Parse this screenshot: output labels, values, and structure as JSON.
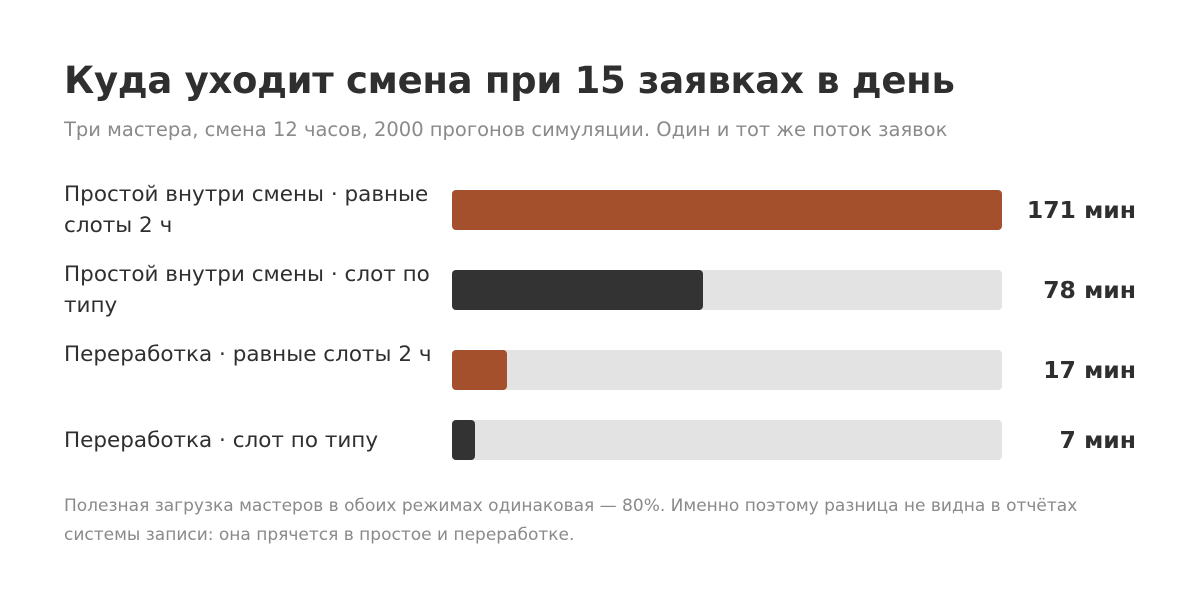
{
  "colors": {
    "accent": "#a4502c",
    "dark": "#333333",
    "track": "#e3e3e3"
  },
  "chart_data": {
    "type": "bar",
    "orientation": "horizontal",
    "title": "Куда уходит смена при 15 заявках в день",
    "subtitle": "Три мастера, смена 12 часов, 2000 прогонов симуляции. Один и тот же поток заявок",
    "unit": "мин",
    "xlim": [
      0,
      171
    ],
    "grid": false,
    "categories": [
      "Простой внутри смены · равные слоты 2 ч",
      "Простой внутри смены · слот по типу",
      "Переработка · равные слоты 2 ч",
      "Переработка · слот по типу"
    ],
    "values": [
      171,
      78,
      17,
      7
    ],
    "value_labels": [
      "171 мин",
      "78 мин",
      "17 мин",
      "7 мин"
    ],
    "bar_colors": [
      "#a4502c",
      "#333333",
      "#a4502c",
      "#333333"
    ],
    "footnote": "Полезная загрузка мастеров в обоих режимах одинаковая — 80%. Именно поэтому разница не видна в отчётах системы записи: она прячется в простое и переработке."
  }
}
